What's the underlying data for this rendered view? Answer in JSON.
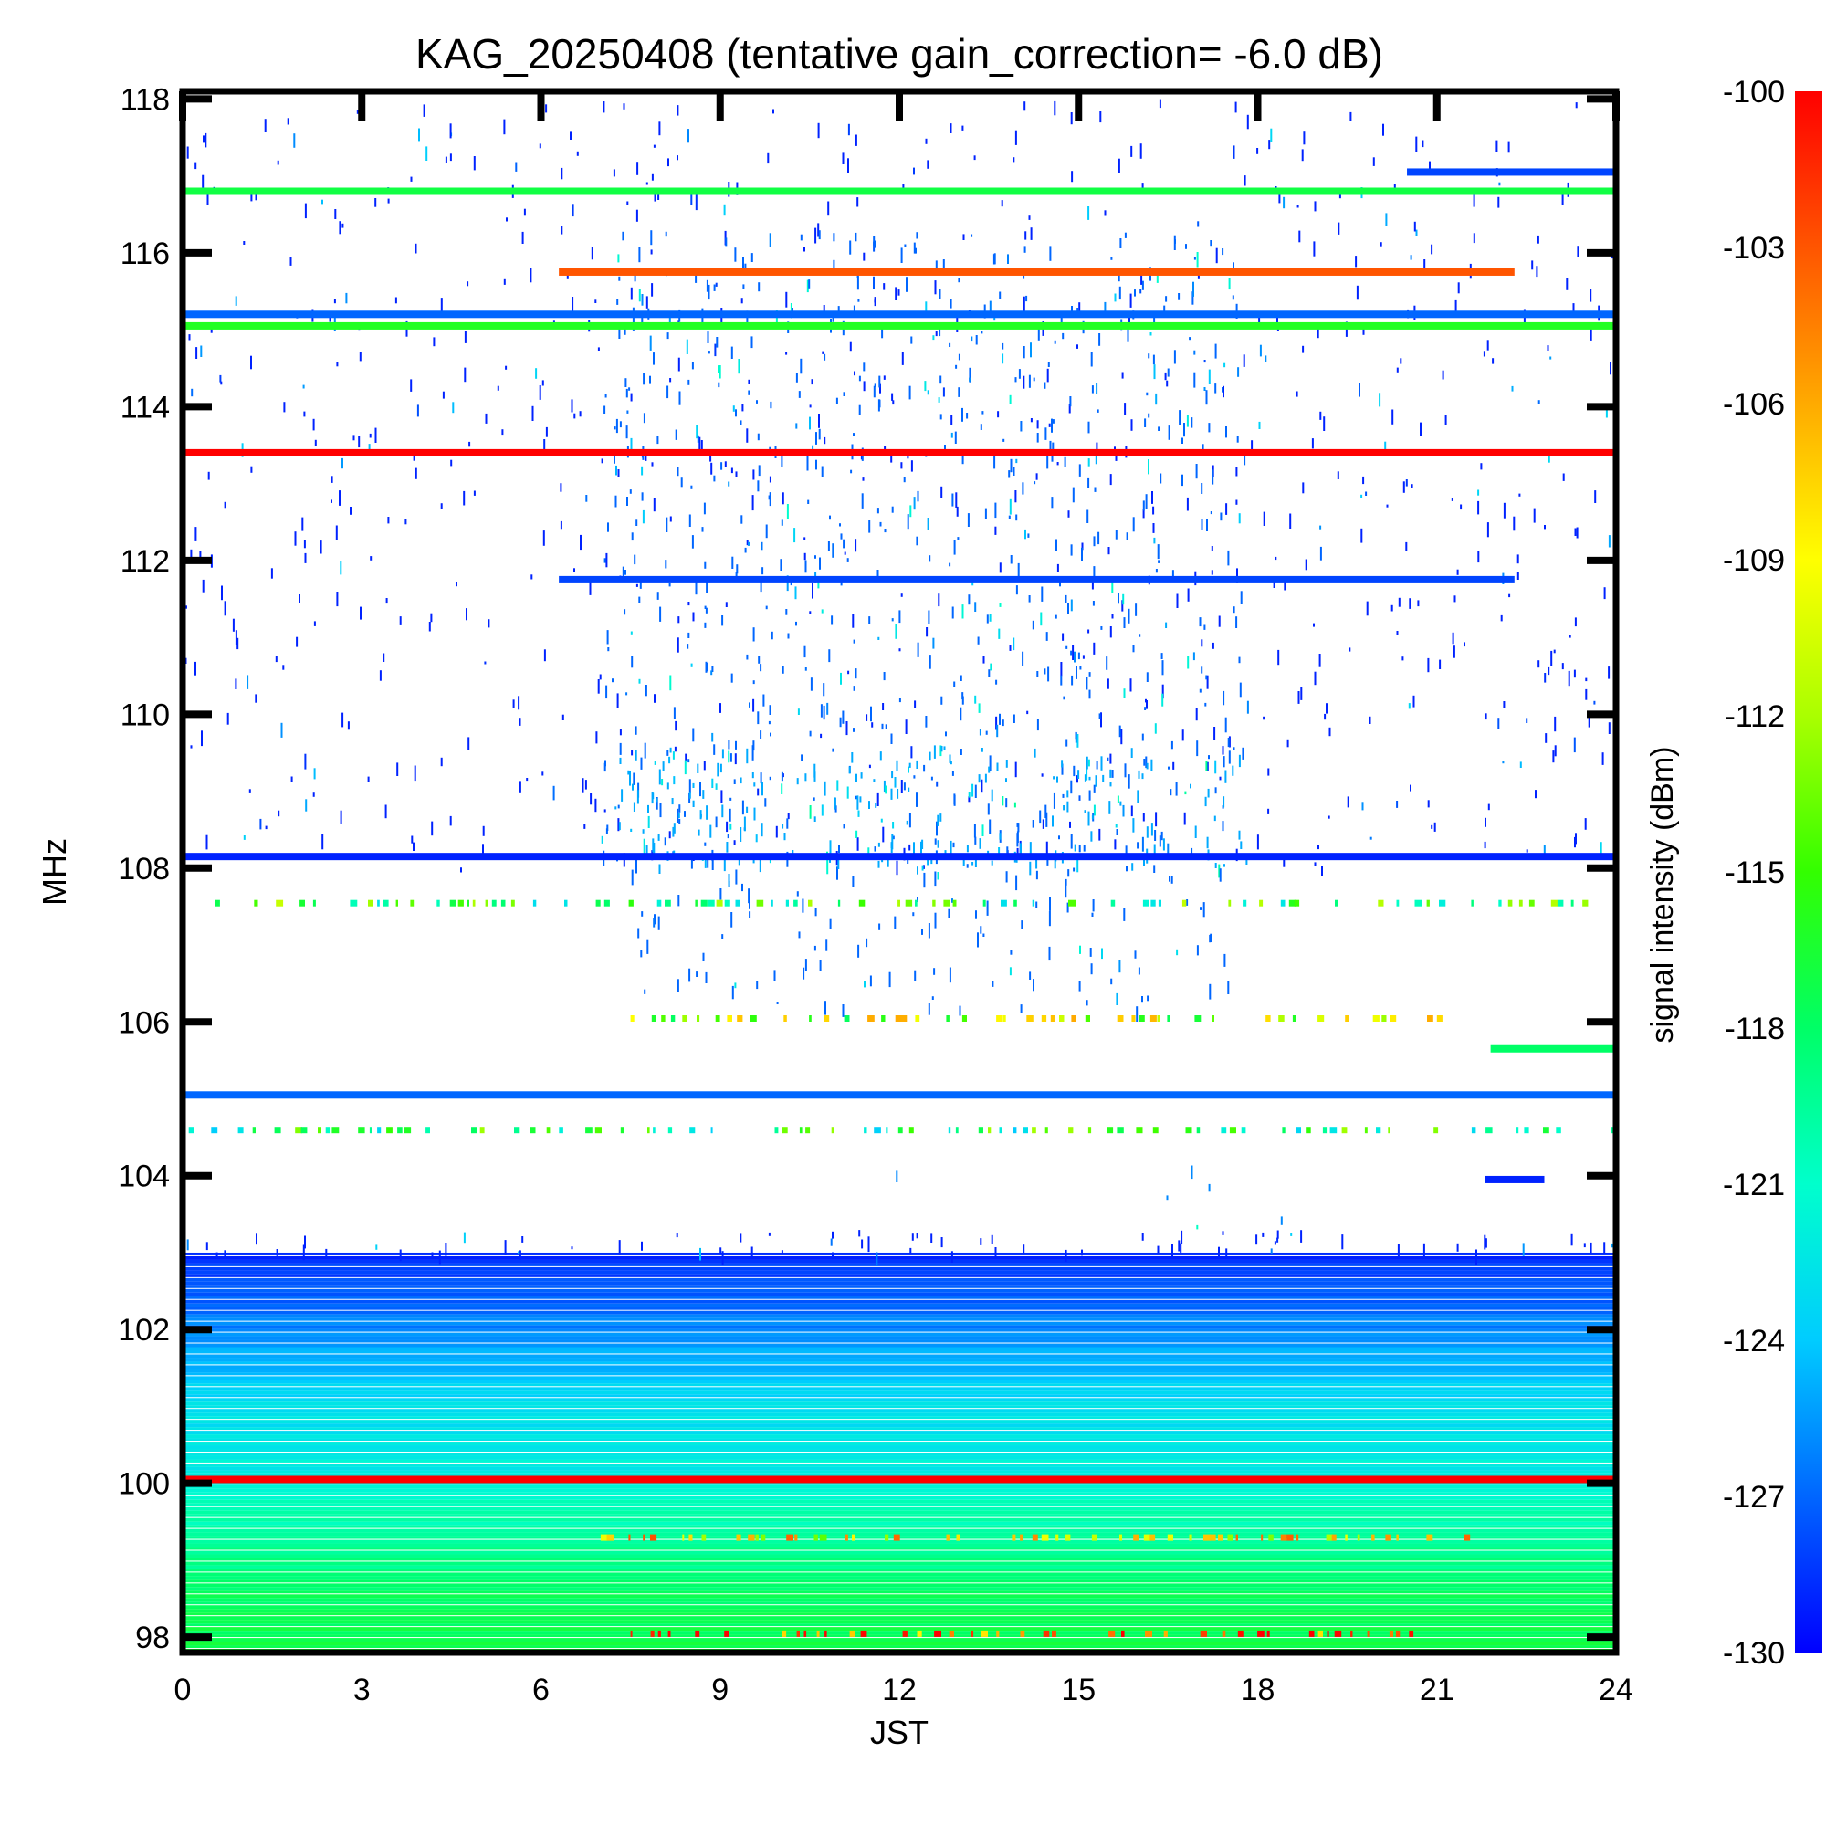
{
  "chart_data": {
    "type": "heatmap",
    "title": "KAG_20250408 (tentative gain_correction= -6.0 dB)",
    "xlabel": "JST",
    "ylabel": "MHz",
    "colorbar_label": "signal intensity (dBm)",
    "xlim": [
      0,
      24
    ],
    "ylim": [
      97.8,
      118.1
    ],
    "x_ticks": [
      "0",
      "3",
      "6",
      "9",
      "12",
      "15",
      "18",
      "21",
      "24"
    ],
    "y_ticks": [
      "98",
      "100",
      "102",
      "104",
      "106",
      "108",
      "110",
      "112",
      "114",
      "116",
      "118"
    ],
    "colorbar_ticks": [
      "-100",
      "-103",
      "-106",
      "-109",
      "-112",
      "-115",
      "-118",
      "-121",
      "-124",
      "-127",
      "-130"
    ],
    "colorbar_range": [
      -130,
      -100
    ],
    "colormap": [
      "#0000ff",
      "#0066ff",
      "#00ccff",
      "#00ffcc",
      "#00ff66",
      "#33ff00",
      "#aaff00",
      "#ffff00",
      "#ffaa00",
      "#ff5500",
      "#ff0000"
    ],
    "continuous_bands": [
      {
        "freq": 116.8,
        "x_start": 0,
        "x_end": 24,
        "dbm": -117
      },
      {
        "freq": 115.2,
        "x_start": 0,
        "x_end": 24,
        "dbm": -127
      },
      {
        "freq": 115.05,
        "x_start": 0,
        "x_end": 24,
        "dbm": -116
      },
      {
        "freq": 113.4,
        "x_start": 0,
        "x_end": 24,
        "dbm": -100
      },
      {
        "freq": 115.75,
        "x_start": 6.3,
        "x_end": 22.3,
        "dbm": -103
      },
      {
        "freq": 111.75,
        "x_start": 6.3,
        "x_end": 22.3,
        "dbm": -128
      },
      {
        "freq": 105.05,
        "x_start": 0,
        "x_end": 24,
        "dbm": -127
      },
      {
        "freq": 105.65,
        "x_start": 21.9,
        "x_end": 24,
        "dbm": -118
      },
      {
        "freq": 103.95,
        "x_start": 21.8,
        "x_end": 22.8,
        "dbm": -129
      },
      {
        "freq": 117.05,
        "x_start": 20.5,
        "x_end": 24,
        "dbm": -128
      },
      {
        "freq": 108.15,
        "x_start": 0,
        "x_end": 24,
        "dbm": -129
      },
      {
        "freq": 100.05,
        "x_start": 0,
        "x_end": 24,
        "dbm": -100
      }
    ],
    "background_gradient": [
      {
        "freq": 103.0,
        "dbm": -129
      },
      {
        "freq": 102.0,
        "dbm": -126
      },
      {
        "freq": 101.0,
        "dbm": -123
      },
      {
        "freq": 100.2,
        "dbm": -122
      },
      {
        "freq": 99.5,
        "dbm": -120
      },
      {
        "freq": 98.5,
        "dbm": -118
      },
      {
        "freq": 97.8,
        "dbm": -117
      }
    ],
    "activity_regions": [
      {
        "f_min": 108.0,
        "f_max": 118.0,
        "x_start": 0,
        "x_end": 24,
        "density": 0.18,
        "dbm": -129
      },
      {
        "f_min": 108.0,
        "f_max": 116.3,
        "x_start": 7,
        "x_end": 17.8,
        "density": 0.45,
        "dbm": -127
      },
      {
        "f_min": 108.0,
        "f_max": 109.6,
        "x_start": 7.2,
        "x_end": 17.8,
        "density": 0.7,
        "dbm": -125
      },
      {
        "f_min": 106.2,
        "f_max": 108.0,
        "x_start": 7.2,
        "x_end": 17.5,
        "density": 0.35,
        "dbm": -127
      },
      {
        "f_min": 103.0,
        "f_max": 103.3,
        "x_start": 0,
        "x_end": 24,
        "density": 0.6,
        "dbm": -129
      },
      {
        "f_min": 103.3,
        "f_max": 104.2,
        "x_start": 8,
        "x_end": 18.5,
        "density": 0.04,
        "dbm": -126
      }
    ],
    "intermittent_bands": [
      {
        "freq": 107.55,
        "x_start": 0,
        "x_end": 24,
        "dbm": -117
      },
      {
        "freq": 106.05,
        "x_start": 7.5,
        "x_end": 21.3,
        "dbm": -112
      },
      {
        "freq": 104.6,
        "x_start": 0,
        "x_end": 24,
        "dbm": -118
      },
      {
        "freq": 99.3,
        "x_start": 7,
        "x_end": 21.5,
        "dbm": -108
      },
      {
        "freq": 98.05,
        "x_start": 7.5,
        "x_end": 21,
        "dbm": -103
      }
    ]
  }
}
